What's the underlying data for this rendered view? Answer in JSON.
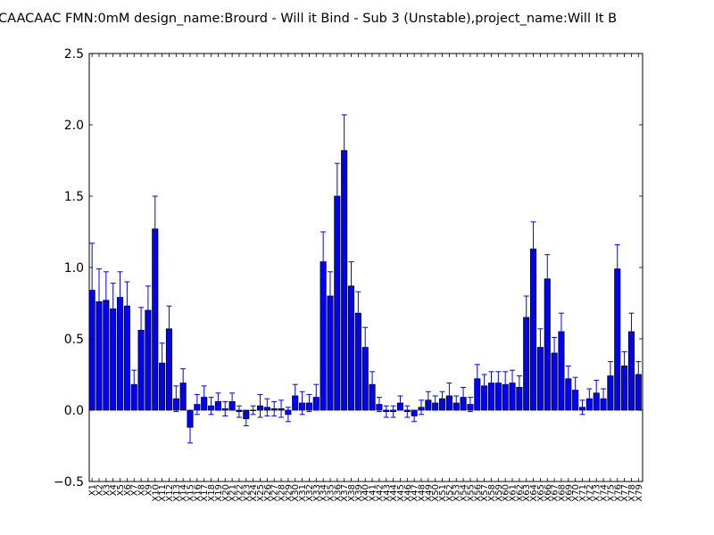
{
  "chart_data": {
    "type": "bar",
    "title": "CAACAAC  FMN:0mM  design_name:Brourd - Will it Bind - Sub 3 (Unstable),project_name:Will It B",
    "xlabel": "",
    "ylabel": "",
    "ylim": [
      -0.5,
      2.5
    ],
    "yticks": [
      "2.5",
      "2.0",
      "1.5",
      "1.0",
      "0.5",
      "0.0",
      "−0.5"
    ],
    "ytick_values": [
      2.5,
      2.0,
      1.5,
      1.0,
      0.5,
      0.0,
      -0.5
    ],
    "grid": false,
    "legend": "none",
    "bar_color": "#0000ff",
    "errorbar_color": "#0000ff",
    "categories": [
      "X1",
      "X2",
      "X3",
      "X4",
      "X5",
      "X6",
      "X7",
      "X8",
      "X9",
      "X10",
      "X11",
      "X12",
      "X13",
      "X14",
      "X15",
      "X16",
      "X17",
      "X18",
      "X19",
      "X20",
      "X21",
      "X22",
      "X23",
      "X24",
      "X25",
      "X26",
      "X27",
      "X28",
      "X29",
      "X30",
      "X31",
      "X32",
      "X33",
      "X34",
      "X35",
      "X36",
      "X37",
      "X38",
      "X39",
      "X40",
      "X41",
      "X42",
      "X43",
      "X44",
      "X45",
      "X46",
      "X47",
      "X48",
      "X49",
      "X50",
      "X51",
      "X52",
      "X53",
      "X54",
      "X55",
      "X56",
      "X57",
      "X58",
      "X59",
      "X60",
      "X61",
      "X62",
      "X63",
      "X64",
      "X65",
      "X66",
      "X67",
      "X68",
      "X69",
      "X70",
      "X71",
      "X72",
      "X73",
      "X74",
      "X75",
      "X76",
      "X77",
      "X78",
      "X79"
    ],
    "values": [
      0.84,
      0.76,
      0.77,
      0.71,
      0.79,
      0.73,
      0.18,
      0.56,
      0.7,
      1.27,
      0.33,
      0.57,
      0.08,
      0.19,
      -0.12,
      0.04,
      0.09,
      0.03,
      0.06,
      0.01,
      0.06,
      -0.01,
      -0.06,
      0.0,
      0.03,
      0.02,
      0.01,
      0.01,
      -0.03,
      0.1,
      0.05,
      0.05,
      0.09,
      1.04,
      0.8,
      1.5,
      1.82,
      0.87,
      0.68,
      0.44,
      0.18,
      0.04,
      -0.01,
      -0.01,
      0.05,
      -0.01,
      -0.04,
      0.02,
      0.07,
      0.05,
      0.08,
      0.1,
      0.05,
      0.09,
      0.04,
      0.22,
      0.17,
      0.19,
      0.19,
      0.18,
      0.19,
      0.16,
      0.65,
      1.13,
      0.44,
      0.92,
      0.4,
      0.55,
      0.22,
      0.14,
      0.02,
      0.08,
      0.12,
      0.08,
      0.24,
      0.99,
      0.31,
      0.55,
      0.25
    ],
    "errors": [
      0.33,
      0.23,
      0.2,
      0.18,
      0.18,
      0.17,
      0.1,
      0.16,
      0.17,
      0.23,
      0.14,
      0.16,
      0.09,
      0.1,
      0.11,
      0.07,
      0.08,
      0.06,
      0.06,
      0.05,
      0.06,
      0.04,
      0.05,
      0.03,
      0.08,
      0.06,
      0.05,
      0.06,
      0.05,
      0.08,
      0.08,
      0.06,
      0.09,
      0.21,
      0.17,
      0.23,
      0.25,
      0.17,
      0.15,
      0.14,
      0.09,
      0.05,
      0.04,
      0.04,
      0.05,
      0.04,
      0.04,
      0.05,
      0.06,
      0.05,
      0.05,
      0.09,
      0.05,
      0.07,
      0.05,
      0.1,
      0.08,
      0.08,
      0.08,
      0.09,
      0.09,
      0.08,
      0.15,
      0.19,
      0.13,
      0.17,
      0.11,
      0.13,
      0.09,
      0.09,
      0.05,
      0.07,
      0.09,
      0.07,
      0.1,
      0.17,
      0.1,
      0.13,
      0.09
    ]
  }
}
